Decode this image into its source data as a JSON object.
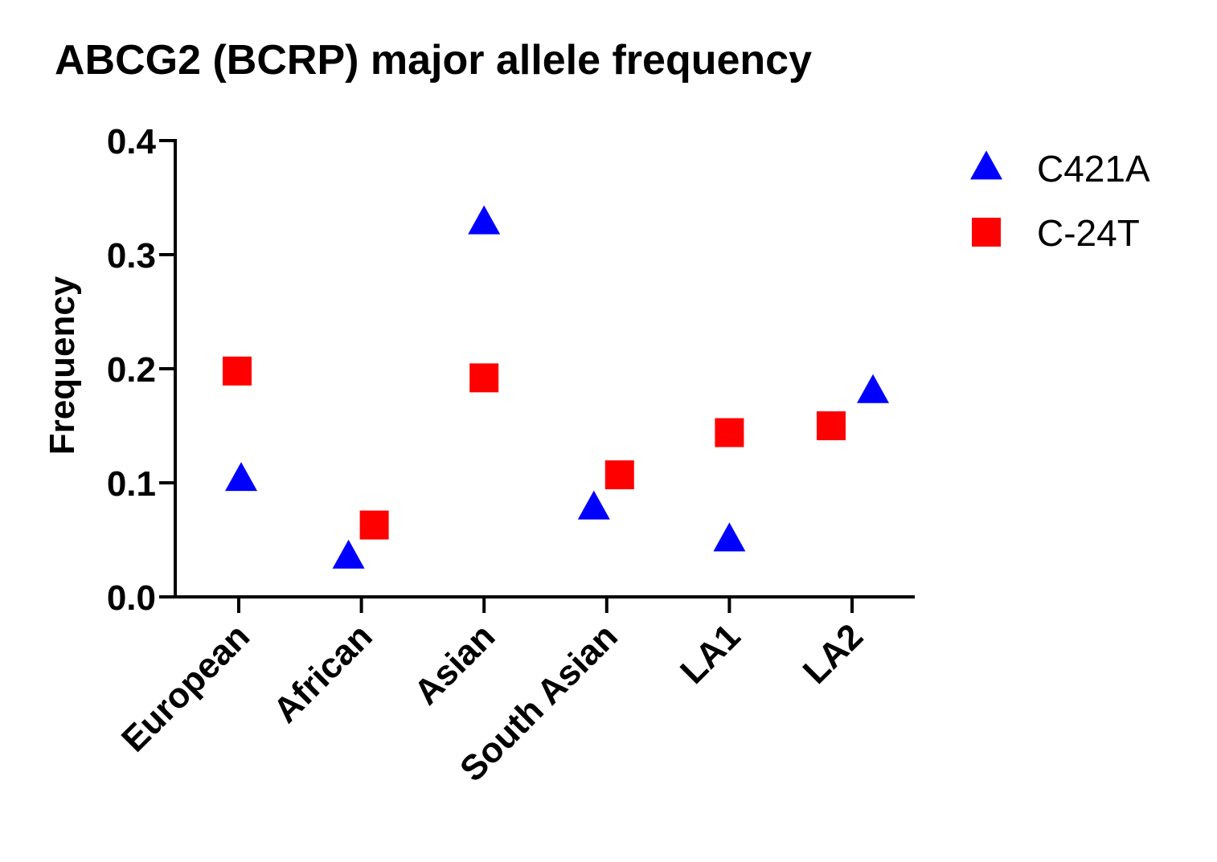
{
  "chart_data": {
    "type": "scatter",
    "title": "ABCG2 (BCRP) major allele frequency",
    "xlabel": "",
    "ylabel": "Frequency",
    "categories": [
      "European",
      "African",
      "Asian",
      "South Asian",
      "LA1",
      "LA2"
    ],
    "ylim": [
      0.0,
      0.4
    ],
    "yticks": [
      "0.0",
      "0.1",
      "0.2",
      "0.3",
      "0.4"
    ],
    "grid": false,
    "legend_position": "top-right",
    "series": [
      {
        "name": "C421A",
        "marker": "triangle",
        "color": "#0000ff",
        "values": [
          0.103,
          0.035,
          0.328,
          0.078,
          0.05,
          0.18
        ]
      },
      {
        "name": "C-24T",
        "marker": "square",
        "color": "#ff0000",
        "values": [
          0.198,
          0.063,
          0.192,
          0.107,
          0.144,
          0.15
        ]
      }
    ]
  }
}
